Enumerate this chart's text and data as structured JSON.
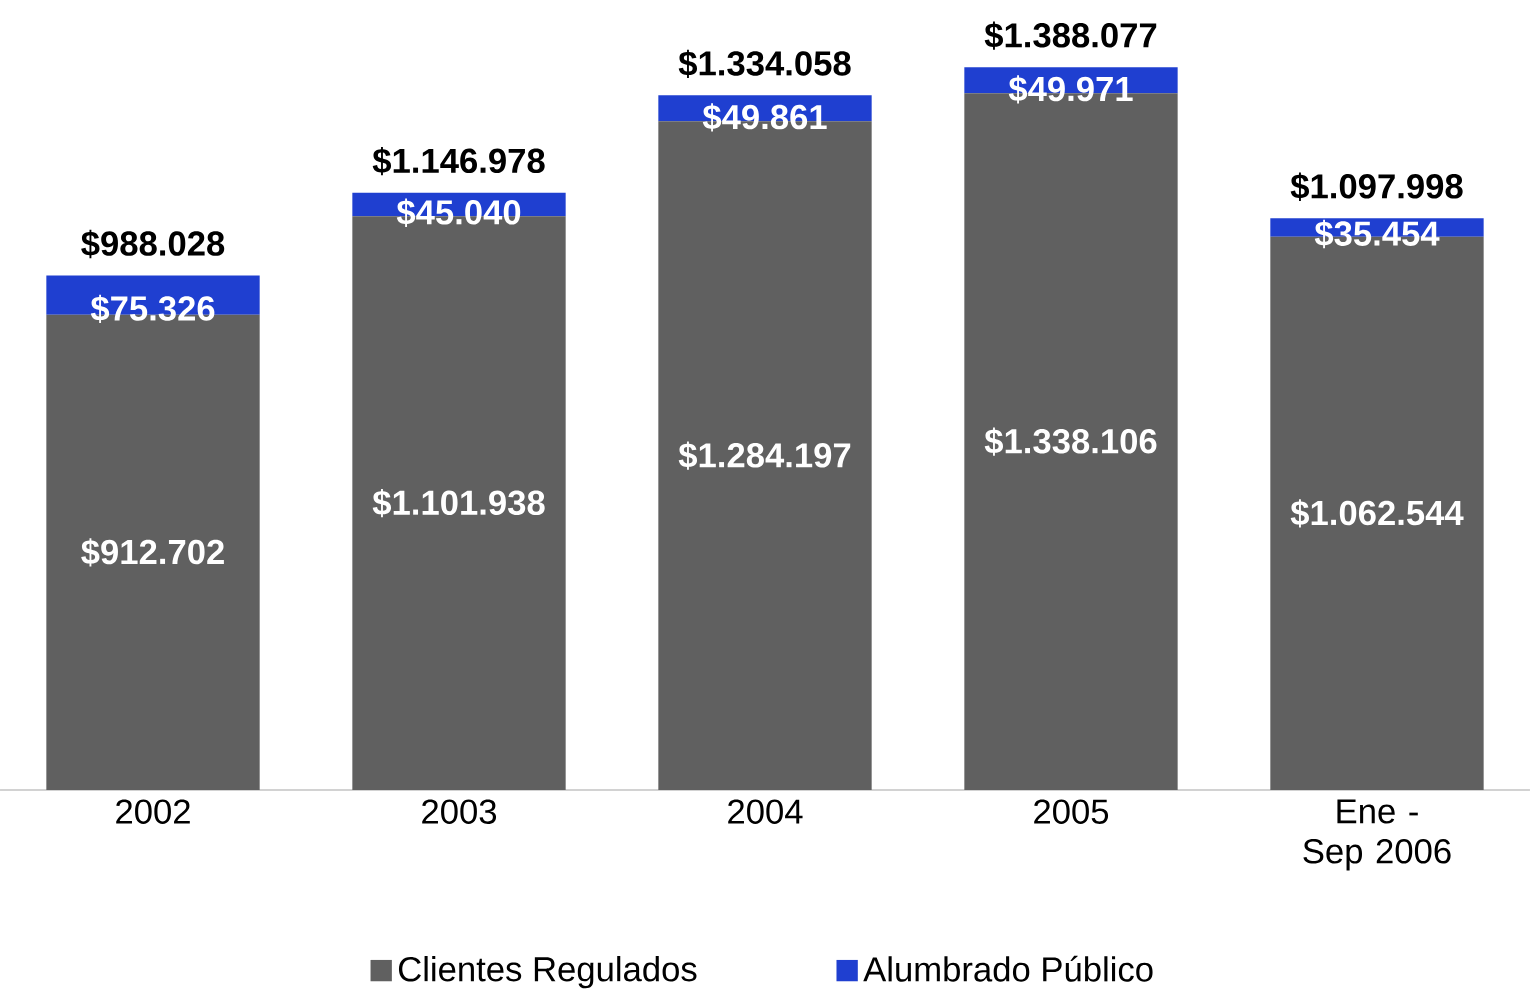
{
  "chart_data": {
    "type": "bar",
    "stacked": true,
    "categories": [
      "2002",
      "2003",
      "2004",
      "2005",
      "Ene - Sep 2006"
    ],
    "series": [
      {
        "name": "Clientes Regulados",
        "color": "#606060",
        "values": [
          912702,
          1101938,
          1284197,
          1338106,
          1062544
        ],
        "value_labels": [
          "$912.702",
          "$1.101.938",
          "$1.284.197",
          "$1.338.106",
          "$1.062.544"
        ]
      },
      {
        "name": "Alumbrado Público",
        "color": "#1f3fd0",
        "values": [
          75326,
          45040,
          49861,
          49971,
          35454
        ],
        "value_labels": [
          "$75.326",
          "$45.040",
          "$49.861",
          "$49.971",
          "$35.454"
        ]
      }
    ],
    "totals": [
      "$988.028",
      "$1.146.978",
      "$1.334.058",
      "$1.388.077",
      "$1.097.998"
    ],
    "legend": "bottom"
  }
}
